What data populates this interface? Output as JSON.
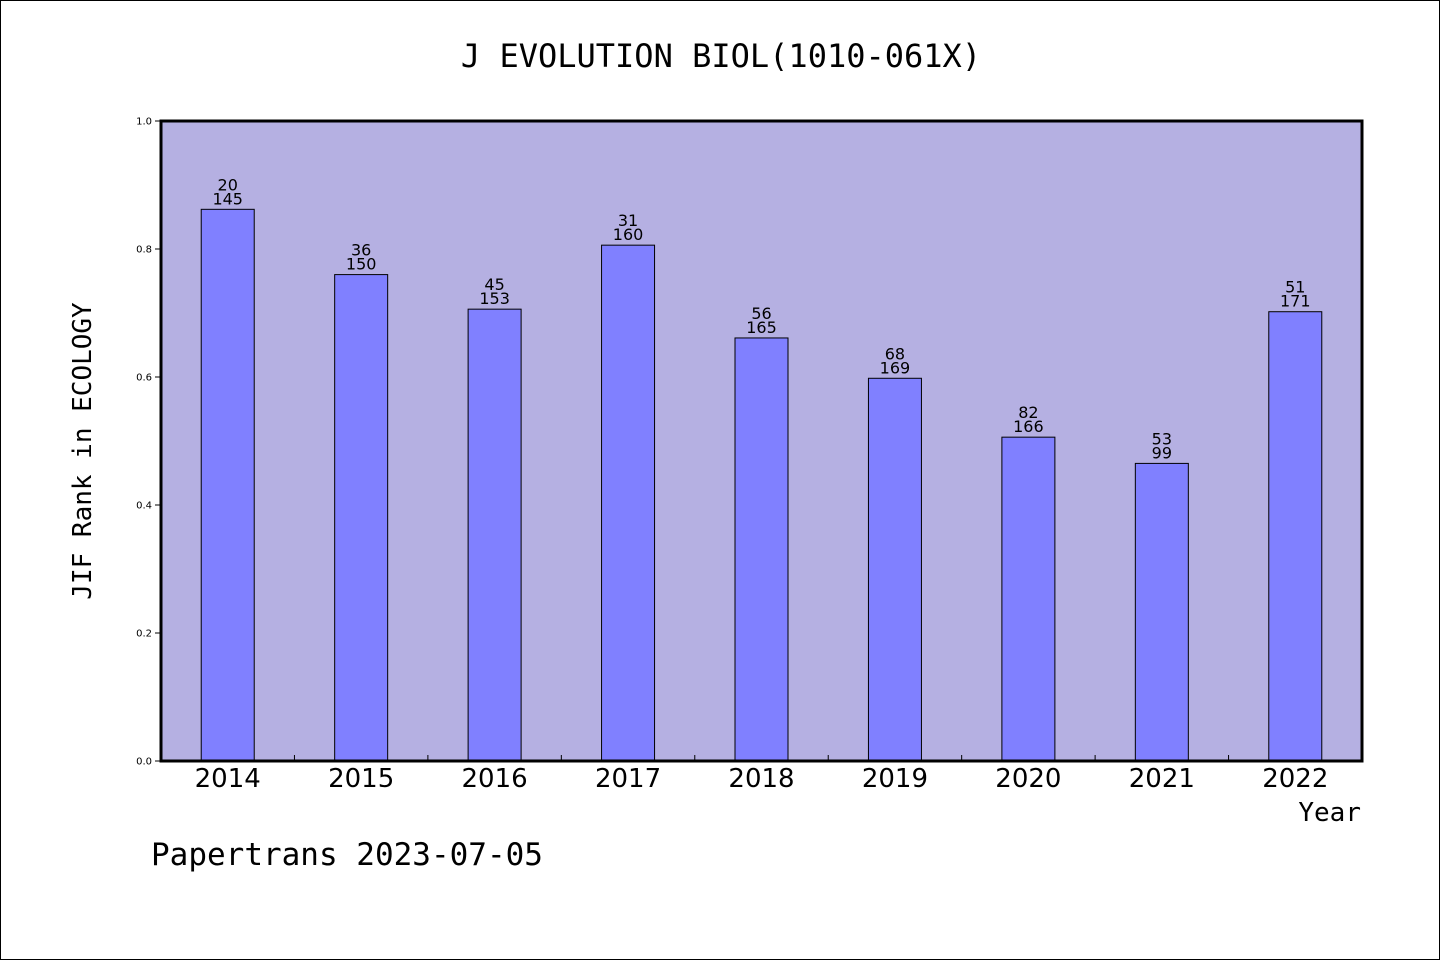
{
  "chart_data": {
    "type": "bar",
    "title": "J EVOLUTION BIOL(1010-061X)",
    "xlabel": "Year",
    "ylabel": "JIF Rank in ECOLOGY",
    "categories": [
      "2014",
      "2015",
      "2016",
      "2017",
      "2018",
      "2019",
      "2020",
      "2021",
      "2022"
    ],
    "values": [
      0.862,
      0.76,
      0.706,
      0.806,
      0.661,
      0.598,
      0.506,
      0.465,
      0.702
    ],
    "rank": [
      "20",
      "36",
      "45",
      "31",
      "56",
      "68",
      "82",
      "53",
      "51"
    ],
    "total": [
      "145",
      "150",
      "153",
      "160",
      "165",
      "169",
      "166",
      "99",
      "171"
    ],
    "ylim": [
      0,
      1.0
    ],
    "yticks": [
      "0.0",
      "0.2",
      "0.4",
      "0.6",
      "0.8",
      "1.0"
    ],
    "grid": false,
    "colors": {
      "plot_background": "#b5b0e2",
      "bar_fill": "#8080ff",
      "bar_stroke": "#000000"
    }
  },
  "footer": "Papertrans 2023-07-05"
}
